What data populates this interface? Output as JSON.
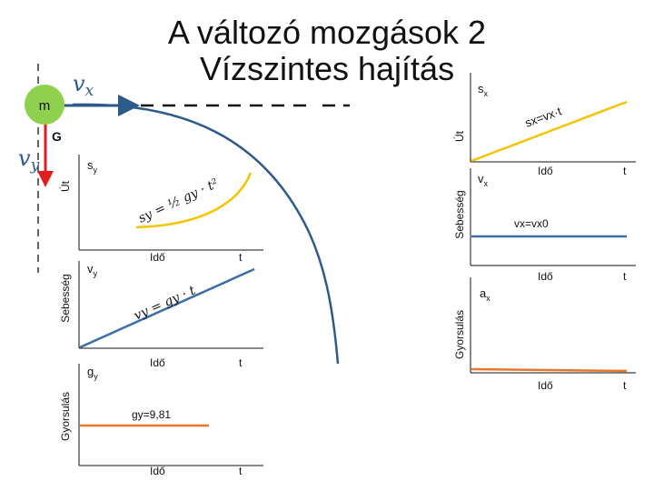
{
  "title": "A változó mozgások 2",
  "subtitle": "Vízszintes hajítás",
  "colors": {
    "curve": "#f5c400",
    "line": "#3a6ea5",
    "accel": "#e8762b",
    "gravity": "#e11d1d",
    "arrow": "#2d5a8a"
  },
  "left": {
    "mass_label": "m",
    "vx_label": "v",
    "vx_sub": "x",
    "vy_label": "v",
    "vy_sub": "y",
    "g_label": "G",
    "pos_chart": {
      "ylabel": "Út",
      "ysym": "s",
      "ysub": "y",
      "xlabel": "Idő",
      "tlabel": "t",
      "formula": "sy = ½ gy · t²"
    },
    "vel_chart": {
      "ylabel": "Sebesség",
      "ysym": "v",
      "ysub": "y",
      "xlabel": "Idő",
      "tlabel": "t",
      "formula": "vy = gy · t"
    },
    "acc_chart": {
      "ylabel": "Gyorsulás",
      "ysym": "g",
      "ysub": "y",
      "xlabel": "Idő",
      "tlabel": "t",
      "formula": "gy=9,81"
    }
  },
  "right": {
    "pos_chart": {
      "ylabel": "Út",
      "ysym": "s",
      "ysub": "x",
      "xlabel": "Idő",
      "tlabel": "t",
      "formula": "sx=vx·t"
    },
    "vel_chart": {
      "ylabel": "Sebesség",
      "ysym": "v",
      "ysub": "x",
      "xlabel": "Idő",
      "tlabel": "t",
      "formula": "vx=vx0"
    },
    "acc_chart": {
      "ylabel": "Gyorsulás",
      "ysym": "a",
      "ysub": "x",
      "xlabel": "Idő",
      "tlabel": "t"
    }
  }
}
